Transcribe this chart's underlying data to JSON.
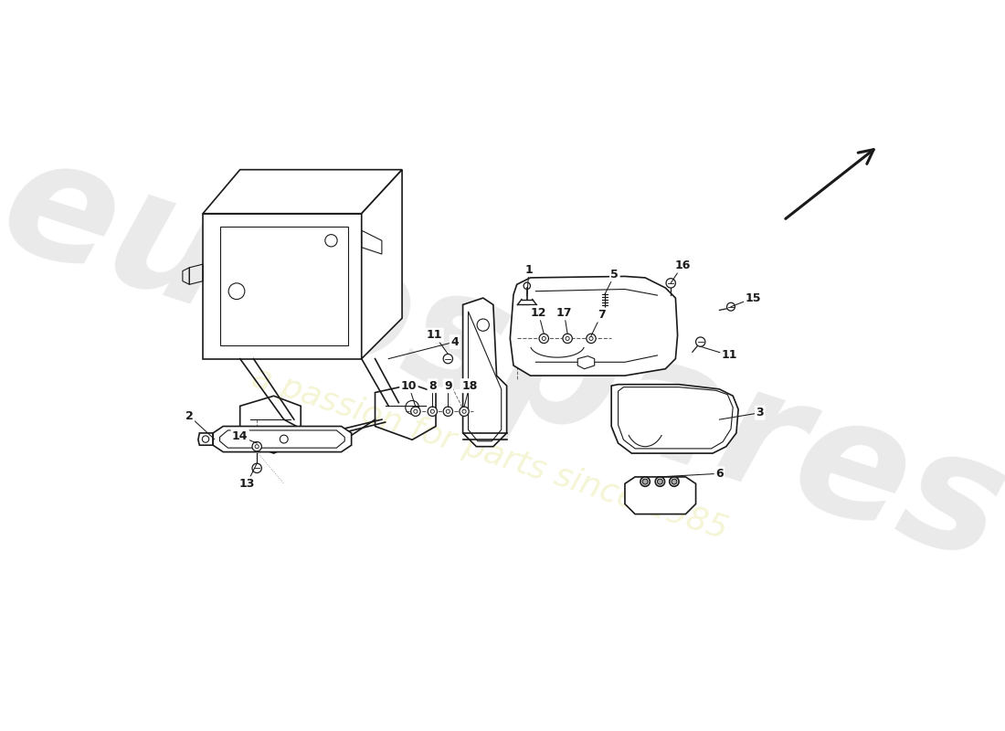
{
  "bg_color": "#ffffff",
  "line_color": "#1a1a1a",
  "figsize": [
    11.0,
    8.0
  ],
  "dpi": 100,
  "wm_color": "#d0d0d0",
  "wm_subcolor": "#f0f0c0",
  "wm_alpha": 0.45,
  "wm_sub_alpha": 0.65
}
